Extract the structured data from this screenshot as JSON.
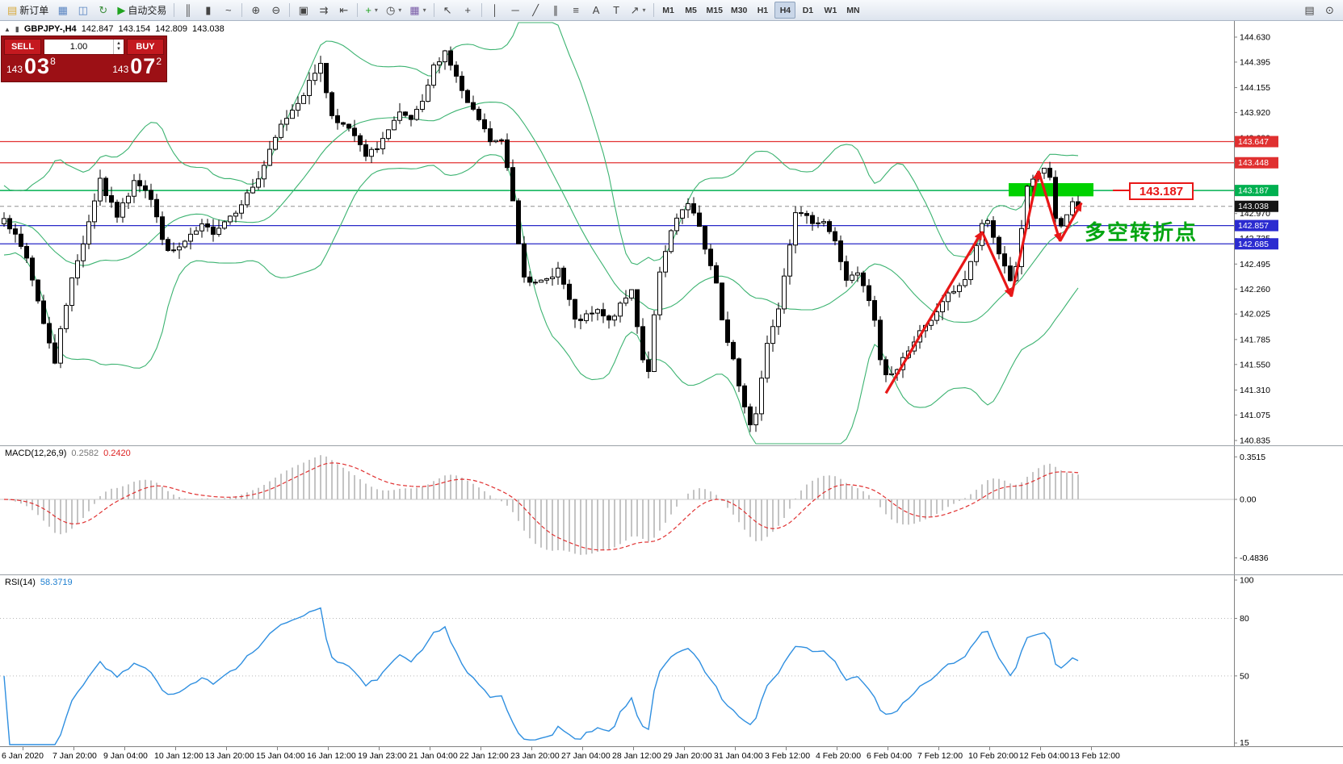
{
  "toolbar": {
    "buttons": [
      {
        "name": "new-order-button",
        "glyph": "▤",
        "glyph_color": "#d7a93c",
        "label": "新订单"
      },
      {
        "name": "chart-window-button",
        "glyph": "▦",
        "glyph_color": "#5b86c2"
      },
      {
        "name": "profile-button",
        "glyph": "◫",
        "glyph_color": "#5b86c2"
      },
      {
        "name": "refresh-button",
        "glyph": "↻",
        "glyph_color": "#3f8f3f"
      },
      {
        "name": "autotrading-button",
        "glyph": "▶",
        "glyph_color": "#1fa31f",
        "label": "自动交易"
      },
      {
        "sep": true
      },
      {
        "name": "bar-chart-mode-button",
        "glyph": "║",
        "glyph_color": "#444"
      },
      {
        "name": "candlestick-mode-button",
        "glyph": "▮",
        "glyph_color": "#444"
      },
      {
        "name": "line-chart-mode-button",
        "glyph": "~",
        "glyph_color": "#444"
      },
      {
        "sep": true
      },
      {
        "name": "zoom-in-button",
        "glyph": "⊕",
        "glyph_color": "#444"
      },
      {
        "name": "zoom-out-button",
        "glyph": "⊖",
        "glyph_color": "#444"
      },
      {
        "sep": true
      },
      {
        "name": "tile-windows-button",
        "glyph": "▣",
        "glyph_color": "#444"
      },
      {
        "name": "auto-scroll-button",
        "glyph": "⇉",
        "glyph_color": "#444"
      },
      {
        "name": "chart-shift-button",
        "glyph": "⇤",
        "glyph_color": "#444"
      },
      {
        "sep": true
      },
      {
        "name": "indicators-button",
        "glyph": "+",
        "glyph_color": "#1fa31f",
        "dropdown": true
      },
      {
        "name": "periods-button",
        "glyph": "◷",
        "glyph_color": "#444",
        "dropdown": true
      },
      {
        "name": "templates-button",
        "glyph": "▦",
        "glyph_color": "#7a5ca8",
        "dropdown": true
      },
      {
        "sep": true
      },
      {
        "name": "cursor-button",
        "glyph": "↖",
        "glyph_color": "#444"
      },
      {
        "name": "crosshair-button",
        "glyph": "+",
        "glyph_color": "#444"
      },
      {
        "sep": true
      },
      {
        "name": "vertical-line-button",
        "glyph": "│",
        "glyph_color": "#444"
      },
      {
        "name": "horizontal-line-button",
        "glyph": "─",
        "glyph_color": "#444"
      },
      {
        "name": "trendline-button",
        "glyph": "╱",
        "glyph_color": "#444"
      },
      {
        "name": "channel-button",
        "glyph": "∥",
        "glyph_color": "#444"
      },
      {
        "name": "fibonacci-button",
        "glyph": "≡",
        "glyph_color": "#444"
      },
      {
        "name": "text-button",
        "glyph": "A",
        "glyph_color": "#444"
      },
      {
        "name": "label-button",
        "glyph": "T",
        "glyph_color": "#444"
      },
      {
        "name": "arrows-button",
        "glyph": "↗",
        "glyph_color": "#444",
        "dropdown": true
      },
      {
        "sep": true
      }
    ],
    "timeframes": [
      {
        "label": "M1"
      },
      {
        "label": "M5"
      },
      {
        "label": "M15"
      },
      {
        "label": "M30"
      },
      {
        "label": "H1"
      },
      {
        "label": "H4",
        "active": true
      },
      {
        "label": "D1"
      },
      {
        "label": "W1"
      },
      {
        "label": "MN"
      }
    ],
    "right_buttons": [
      {
        "name": "data-window-button",
        "glyph": "▤",
        "glyph_color": "#444"
      },
      {
        "name": "search-button",
        "glyph": "⊙",
        "glyph_color": "#444"
      }
    ]
  },
  "symbol_bar": {
    "symbol": "GBPJPY-,H4",
    "open": "142.847",
    "high": "143.154",
    "low": "142.809",
    "close": "143.038"
  },
  "trade_panel": {
    "sell_label": "SELL",
    "buy_label": "BUY",
    "volume": "1.00",
    "sell_price_main": "143",
    "sell_price_big": "03",
    "sell_price_sup": "8",
    "buy_price_main": "143",
    "buy_price_big": "07",
    "buy_price_sup": "2"
  },
  "theme": {
    "trade_panel_bg": "#9c1015",
    "trade_button_bg": "#c4191f",
    "rsi_line": "#2f8fe0",
    "macd_signal": "#e03030",
    "macd_histogram": "#c4c4c4",
    "axis_line": "#808080",
    "tag_red": "#e03030",
    "tag_green": "#00b050",
    "tag_blue": "#2b2bd0",
    "tag_black": "#141414"
  },
  "chart_data": {
    "type": "candlestick",
    "symbol": "GBPJPY-",
    "timeframe": "H4",
    "ohlc_display": {
      "open": 142.847,
      "high": 143.154,
      "low": 142.809,
      "close": 143.038
    },
    "y_axis": {
      "price_top": 144.63,
      "price_bottom": 140.835,
      "ticks": [
        144.63,
        144.395,
        144.155,
        143.92,
        143.68,
        142.97,
        142.735,
        142.495,
        142.26,
        142.025,
        141.785,
        141.55,
        141.31,
        141.075,
        140.835
      ],
      "tags": [
        {
          "price": 143.647,
          "color": "red"
        },
        {
          "price": 143.448,
          "color": "red"
        },
        {
          "price": 143.187,
          "color": "green"
        },
        {
          "price": 143.038,
          "color": "black"
        },
        {
          "price": 142.857,
          "color": "blue"
        },
        {
          "price": 142.685,
          "color": "blue"
        }
      ]
    },
    "levels": [
      {
        "price": 143.647,
        "color": "#e23232",
        "style": "solid",
        "width": 1.3
      },
      {
        "price": 143.448,
        "color": "#e23232",
        "style": "solid",
        "width": 1.3
      },
      {
        "price": 143.187,
        "color": "#00b050",
        "style": "solid",
        "width": 1.5
      },
      {
        "price": 143.038,
        "color": "#909090",
        "style": "dash",
        "width": 1
      },
      {
        "price": 142.857,
        "color": "#2929c8",
        "style": "solid",
        "width": 1.3
      },
      {
        "price": 142.685,
        "color": "#2929c8",
        "style": "solid",
        "width": 1.3
      }
    ],
    "candles": {
      "count": 191,
      "close_anchors": [
        [
          0,
          142.95
        ],
        [
          2,
          142.75
        ],
        [
          4,
          142.55
        ],
        [
          6,
          142.15
        ],
        [
          8,
          141.75
        ],
        [
          9,
          141.55
        ],
        [
          10,
          141.9
        ],
        [
          12,
          142.35
        ],
        [
          14,
          142.7
        ],
        [
          16,
          143.1
        ],
        [
          17,
          143.3
        ],
        [
          18,
          143.15
        ],
        [
          20,
          142.95
        ],
        [
          22,
          143.15
        ],
        [
          23,
          143.3
        ],
        [
          25,
          143.2
        ],
        [
          26,
          143.1
        ],
        [
          28,
          142.75
        ],
        [
          29,
          142.6
        ],
        [
          31,
          142.65
        ],
        [
          33,
          142.75
        ],
        [
          35,
          142.85
        ],
        [
          37,
          142.8
        ],
        [
          39,
          142.9
        ],
        [
          41,
          143.0
        ],
        [
          43,
          143.15
        ],
        [
          45,
          143.3
        ],
        [
          47,
          143.55
        ],
        [
          49,
          143.8
        ],
        [
          51,
          143.95
        ],
        [
          53,
          144.1
        ],
        [
          55,
          144.3
        ],
        [
          56,
          144.4
        ],
        [
          57,
          144.1
        ],
        [
          58,
          143.9
        ],
        [
          60,
          143.8
        ],
        [
          62,
          143.7
        ],
        [
          64,
          143.5
        ],
        [
          66,
          143.6
        ],
        [
          68,
          143.75
        ],
        [
          70,
          143.9
        ],
        [
          72,
          143.85
        ],
        [
          74,
          144.0
        ],
        [
          76,
          144.35
        ],
        [
          78,
          144.5
        ],
        [
          80,
          144.25
        ],
        [
          82,
          144.0
        ],
        [
          84,
          143.85
        ],
        [
          86,
          143.65
        ],
        [
          88,
          143.65
        ],
        [
          89,
          143.4
        ],
        [
          90,
          143.1
        ],
        [
          91,
          142.7
        ],
        [
          92,
          142.4
        ],
        [
          94,
          142.3
        ],
        [
          96,
          142.35
        ],
        [
          98,
          142.45
        ],
        [
          100,
          142.15
        ],
        [
          101,
          141.95
        ],
        [
          103,
          142.0
        ],
        [
          105,
          142.05
        ],
        [
          107,
          141.95
        ],
        [
          109,
          142.1
        ],
        [
          111,
          142.25
        ],
        [
          113,
          141.6
        ],
        [
          114,
          141.5
        ],
        [
          115,
          142.0
        ],
        [
          116,
          142.4
        ],
        [
          118,
          142.8
        ],
        [
          120,
          143.0
        ],
        [
          121,
          143.05
        ],
        [
          123,
          142.85
        ],
        [
          124,
          142.65
        ],
        [
          126,
          142.3
        ],
        [
          127,
          141.95
        ],
        [
          129,
          141.6
        ],
        [
          130,
          141.35
        ],
        [
          131,
          141.15
        ],
        [
          132,
          141.0
        ],
        [
          133,
          141.1
        ],
        [
          135,
          141.75
        ],
        [
          137,
          142.1
        ],
        [
          139,
          142.7
        ],
        [
          140,
          143.0
        ],
        [
          141,
          142.95
        ],
        [
          143,
          142.9
        ],
        [
          145,
          142.9
        ],
        [
          147,
          142.7
        ],
        [
          149,
          142.35
        ],
        [
          151,
          142.4
        ],
        [
          153,
          142.15
        ],
        [
          154,
          141.95
        ],
        [
          155,
          141.6
        ],
        [
          156,
          141.45
        ],
        [
          158,
          141.5
        ],
        [
          160,
          141.7
        ],
        [
          162,
          141.85
        ],
        [
          164,
          141.95
        ],
        [
          166,
          142.15
        ],
        [
          168,
          142.25
        ],
        [
          170,
          142.35
        ],
        [
          171,
          142.5
        ],
        [
          173,
          142.85
        ],
        [
          174,
          142.9
        ],
        [
          175,
          142.75
        ],
        [
          176,
          142.6
        ],
        [
          178,
          142.35
        ],
        [
          179,
          142.45
        ],
        [
          181,
          143.2
        ],
        [
          183,
          143.35
        ],
        [
          184,
          143.4
        ],
        [
          185,
          143.3
        ],
        [
          186,
          142.9
        ],
        [
          187,
          142.85
        ],
        [
          188,
          142.95
        ],
        [
          189,
          143.1
        ],
        [
          190,
          143.038
        ]
      ]
    },
    "bollinger": {
      "period": 20,
      "deviation": 2,
      "color": "#3cb371"
    },
    "x_axis": {
      "labels": [
        "6 Jan 2020",
        "7 Jan 20:00",
        "9 Jan 04:00",
        "10 Jan 12:00",
        "13 Jan 20:00",
        "15 Jan 04:00",
        "16 Jan 12:00",
        "19 Jan 23:00",
        "21 Jan 04:00",
        "22 Jan 12:00",
        "23 Jan 20:00",
        "27 Jan 04:00",
        "28 Jan 12:00",
        "29 Jan 20:00",
        "31 Jan 04:00",
        "3 Feb 12:00",
        "4 Feb 20:00",
        "6 Feb 04:00",
        "7 Feb 12:00",
        "10 Feb 20:00",
        "12 Feb 04:00",
        "13 Feb 12:00"
      ]
    },
    "macd": {
      "name": "MACD(12,26,9)",
      "value_main": "0.2582",
      "value_signal": "0.2420",
      "scale_ticks": [
        "0.3515",
        "0.00",
        "-0.4836"
      ],
      "scale_values": [
        0.3515,
        0,
        -0.4836
      ]
    },
    "rsi": {
      "name": "RSI(14)",
      "value": "58.3719",
      "scale_ticks": [
        100,
        80,
        50,
        15
      ],
      "levels": [
        80,
        50
      ]
    },
    "annotations": {
      "zone_rect": {
        "from_index": 178,
        "to_index": 193,
        "price_top": 143.256,
        "price_bottom": 143.132,
        "color": "#00d200"
      },
      "zigzag": [
        {
          "i": 156,
          "p": 141.28
        },
        {
          "i": 173,
          "p": 142.8
        },
        {
          "i": 178.2,
          "p": 142.19
        },
        {
          "i": 183,
          "p": 143.37
        },
        {
          "i": 186.8,
          "p": 142.71
        },
        {
          "i": 190.6,
          "p": 143.07
        }
      ],
      "zigzag_color": "#e81717",
      "callout": {
        "label": "143.187",
        "price": 143.187,
        "color": "#e81717"
      },
      "text": {
        "label": "多空转折点",
        "color": "#00a510"
      }
    }
  }
}
